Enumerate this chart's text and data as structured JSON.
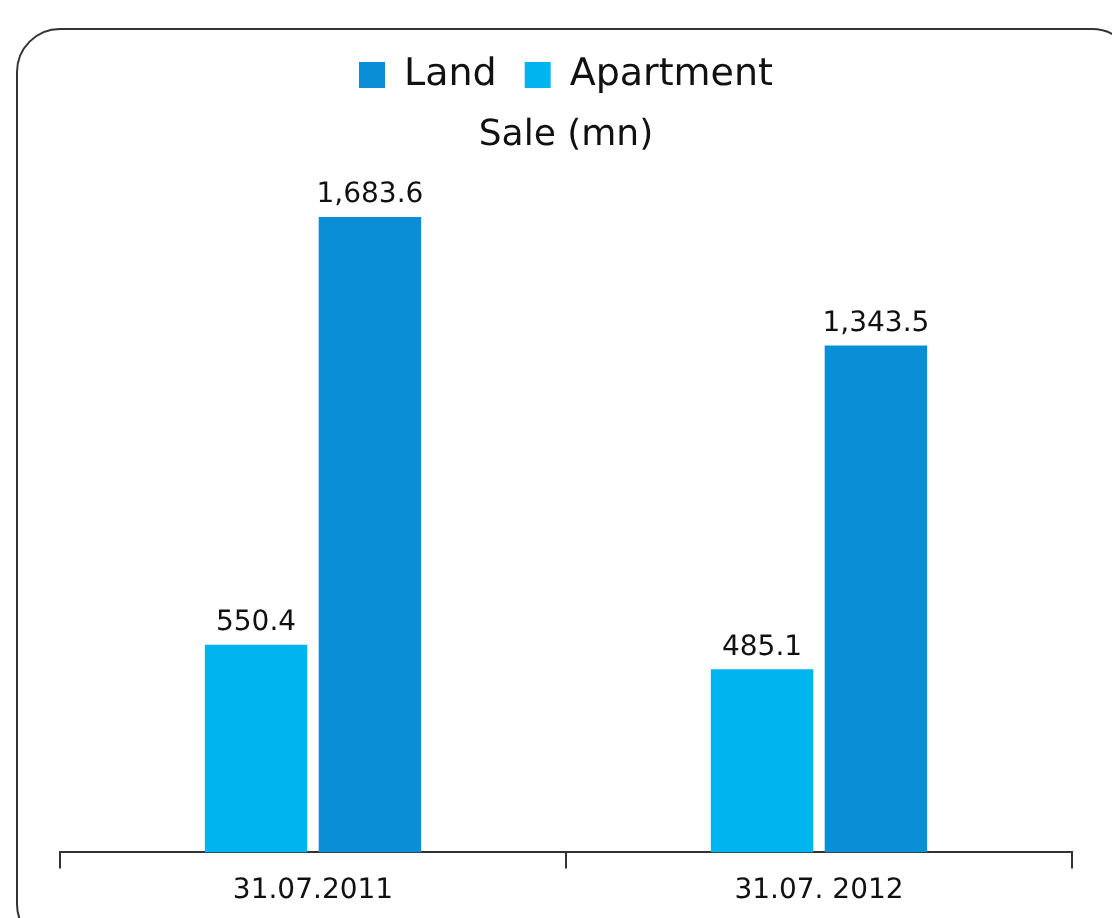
{
  "chart_data": {
    "type": "bar",
    "title": "Sale (mn)",
    "categories": [
      "31.07.2011",
      "31.07. 2012"
    ],
    "series": [
      {
        "name": "Apartment",
        "color": "#00b5ef",
        "values": [
          550.4,
          485.1
        ],
        "value_labels": [
          "550.4",
          "485.1"
        ]
      },
      {
        "name": "Land",
        "color": "#0a8fd6",
        "values": [
          1683.6,
          1343.5
        ],
        "value_labels": [
          "1,683.6",
          "1,343.5"
        ]
      }
    ],
    "legend": "top",
    "grid": false
  }
}
